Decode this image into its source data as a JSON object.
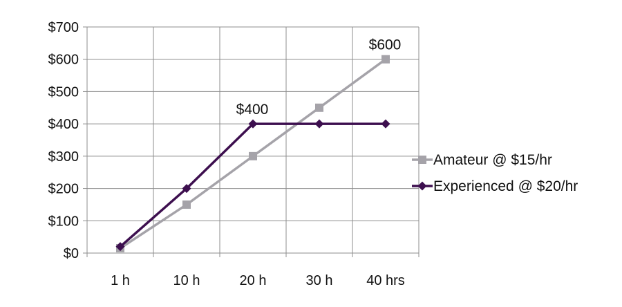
{
  "chart_data": {
    "type": "line",
    "categories": [
      "1 h",
      "10 h",
      "20 h",
      "30 h",
      "40 hrs"
    ],
    "ylim": [
      0,
      700
    ],
    "yticks": [
      "$0",
      "$100",
      "$200",
      "$300",
      "$400",
      "$500",
      "$600",
      "$700"
    ],
    "ytick_values": [
      0,
      100,
      200,
      300,
      400,
      500,
      600,
      700
    ],
    "grid": true,
    "legend_position": "right",
    "series": [
      {
        "name": "Amateur @ $15/hr",
        "values": [
          15,
          150,
          300,
          450,
          600
        ],
        "color": "#a5a3a9",
        "marker": "square"
      },
      {
        "name": "Experienced @ $20/hr",
        "values": [
          20,
          200,
          400,
          400,
          400
        ],
        "color": "#3d0f4f",
        "marker": "diamond"
      }
    ],
    "annotations": [
      {
        "text": "$600",
        "series": 0,
        "index": 4
      },
      {
        "text": "$400",
        "series": 1,
        "index": 2
      }
    ]
  }
}
